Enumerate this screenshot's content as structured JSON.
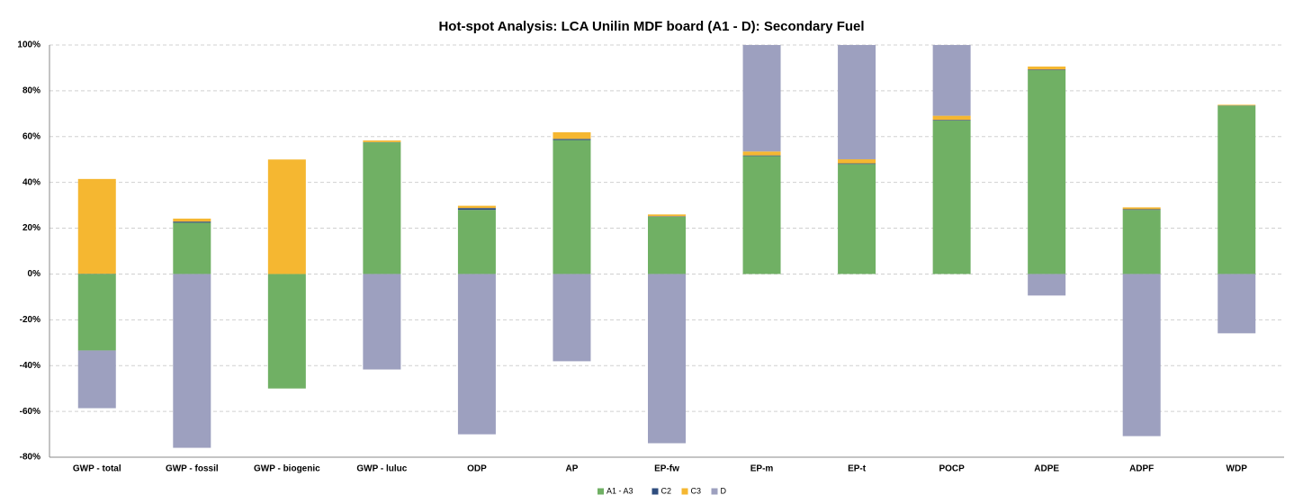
{
  "chart_data": {
    "type": "stacked-bar",
    "title": "Hot-spot Analysis: LCA Unilin MDF board (A1 - D): Secondary Fuel",
    "categories": [
      "GWP - total",
      "GWP - fossil",
      "GWP - biogenic",
      "GWP - luluc",
      "ODP",
      "AP",
      "EP-fw",
      "EP-m",
      "EP-t",
      "POCP",
      "ADPE",
      "ADPF",
      "WDP"
    ],
    "series": [
      {
        "name": "A1 - A3",
        "color": "#70b064",
        "values": [
          -33.4,
          22.4,
          -50,
          57.5,
          28,
          58.5,
          25,
          51.5,
          48,
          67,
          89,
          28,
          73.5
        ]
      },
      {
        "name": "C2",
        "color": "#2f4d7e",
        "values": [
          0.1,
          0.5,
          0,
          0.1,
          0.8,
          0.5,
          0.2,
          0.3,
          0.3,
          0.3,
          0.3,
          0.3,
          0.1
        ]
      },
      {
        "name": "C3",
        "color": "#f5b731",
        "values": [
          41.4,
          1.3,
          50,
          0.7,
          1,
          2.9,
          0.8,
          1.7,
          1.8,
          1.8,
          1.3,
          0.8,
          0.3
        ]
      },
      {
        "name": "D",
        "color": "#9da0bf",
        "values": [
          -25.2,
          -75.9,
          0,
          -41.7,
          -70,
          -38.1,
          -73.9,
          46.5,
          49.9,
          30.9,
          -9.4,
          -70.8,
          -25.9
        ]
      }
    ],
    "ylim": [
      -80,
      100
    ],
    "yticks": [
      {
        "value": -80,
        "label": "-80%"
      },
      {
        "value": -60,
        "label": "-60%"
      },
      {
        "value": -40,
        "label": "-40%"
      },
      {
        "value": -20,
        "label": "-20%"
      },
      {
        "value": 0,
        "label": "0%"
      },
      {
        "value": 20,
        "label": "20%"
      },
      {
        "value": 40,
        "label": "40%"
      },
      {
        "value": 60,
        "label": "60%"
      },
      {
        "value": 80,
        "label": "80%"
      },
      {
        "value": 100,
        "label": "100%"
      }
    ],
    "grid": true,
    "legend": "bottom"
  }
}
